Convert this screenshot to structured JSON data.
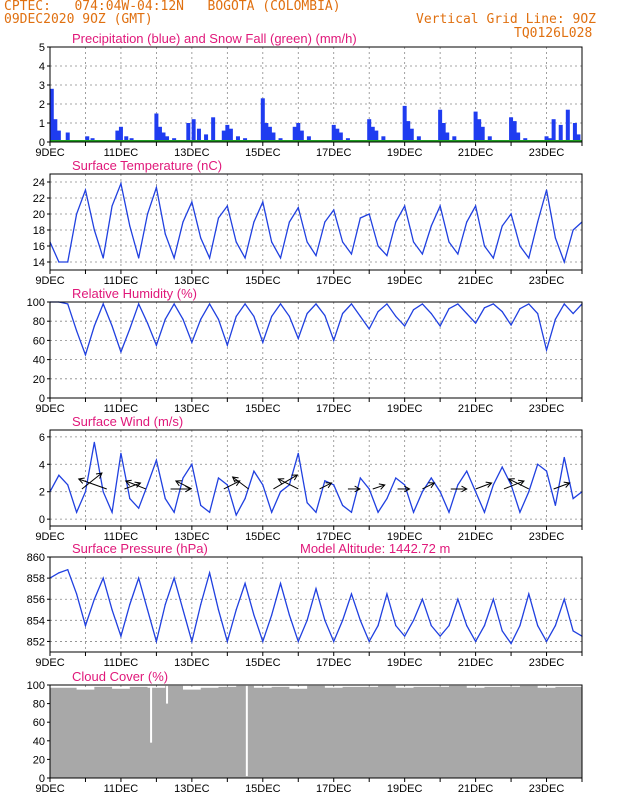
{
  "header": {
    "title": "CPTEC:   074:04W-04:12N   BOGOTA (COLOMBIA)",
    "date": "09DEC2020 9OZ (GMT)",
    "grid_note": "Vertical Grid Line: 9OZ",
    "code": "TQ0126L028"
  },
  "x_tick_labels": [
    "9DEC",
    "11DEC",
    "13DEC",
    "15DEC",
    "17DEC",
    "19DEC",
    "21DEC",
    "23DEC"
  ],
  "chart_data": [
    {
      "type": "bar",
      "title": "Precipitation (blue) and Snow Fall (green) (mm/h)",
      "ylim": [
        0,
        5
      ],
      "yticks": [
        0,
        1,
        2,
        3,
        4,
        5
      ],
      "xlim": [
        0,
        15
      ],
      "colors": {
        "precip": "#1f3cf0",
        "snow": "#20a020"
      },
      "series": [
        {
          "name": "Precipitation",
          "x": [
            0.05,
            0.15,
            0.25,
            0.5,
            1.05,
            1.2,
            1.9,
            2.0,
            2.15,
            2.3,
            3.0,
            3.1,
            3.2,
            3.3,
            3.5,
            3.9,
            4.05,
            4.2,
            4.4,
            4.6,
            4.9,
            5.0,
            5.1,
            5.3,
            5.5,
            6.0,
            6.1,
            6.2,
            6.3,
            6.5,
            6.9,
            7.0,
            7.1,
            7.3,
            8.0,
            8.1,
            8.2,
            8.4,
            9.0,
            9.1,
            9.2,
            9.4,
            10.0,
            10.1,
            10.2,
            10.4,
            11.0,
            11.1,
            11.2,
            11.4,
            12.0,
            12.1,
            12.2,
            12.4,
            13.0,
            13.1,
            13.2,
            13.4,
            14.0,
            14.1,
            14.2,
            14.4,
            14.6,
            14.8,
            14.9
          ],
          "values": [
            2.8,
            1.2,
            0.6,
            0.5,
            0.3,
            0.2,
            0.6,
            0.8,
            0.3,
            0.2,
            1.5,
            0.8,
            0.5,
            0.3,
            0.2,
            1.0,
            1.2,
            0.7,
            0.4,
            1.3,
            0.6,
            0.9,
            0.7,
            0.3,
            0.2,
            2.3,
            1.0,
            0.8,
            0.5,
            0.2,
            0.8,
            1.0,
            0.6,
            0.3,
            0.9,
            0.7,
            0.5,
            0.2,
            1.2,
            0.8,
            0.6,
            0.3,
            1.9,
            1.1,
            0.7,
            0.3,
            1.7,
            1.0,
            0.5,
            0.3,
            1.6,
            1.2,
            0.8,
            0.3,
            1.3,
            1.1,
            0.5,
            0.2,
            0.3,
            0.2,
            1.2,
            0.9,
            1.7,
            1.0,
            0.4
          ]
        },
        {
          "name": "Snow Fall",
          "x": [],
          "values": []
        }
      ]
    },
    {
      "type": "line",
      "title": "Surface Temperature (nC)",
      "ylim": [
        13,
        25
      ],
      "yticks": [
        14,
        16,
        18,
        20,
        22,
        24
      ],
      "xlim": [
        0,
        15
      ],
      "color": "#2040e0",
      "series": [
        {
          "name": "",
          "x": [
            0,
            0.25,
            0.5,
            0.75,
            1.0,
            1.25,
            1.5,
            1.75,
            2.0,
            2.25,
            2.5,
            2.75,
            3.0,
            3.25,
            3.5,
            3.75,
            4.0,
            4.25,
            4.5,
            4.75,
            5.0,
            5.25,
            5.5,
            5.75,
            6.0,
            6.25,
            6.5,
            6.75,
            7.0,
            7.25,
            7.5,
            7.75,
            8.0,
            8.25,
            8.5,
            8.75,
            9.0,
            9.25,
            9.5,
            9.75,
            10.0,
            10.25,
            10.5,
            10.75,
            11.0,
            11.25,
            11.5,
            11.75,
            12.0,
            12.25,
            12.5,
            12.75,
            13.0,
            13.25,
            13.5,
            13.75,
            14.0,
            14.25,
            14.5,
            14.75,
            15.0
          ],
          "values": [
            16.5,
            14.0,
            14.0,
            20.0,
            23.0,
            18.0,
            14.5,
            21.0,
            23.8,
            18.5,
            14.5,
            20.0,
            23.3,
            17.5,
            14.5,
            19.0,
            21.5,
            17.0,
            14.5,
            19.5,
            21.0,
            16.5,
            14.5,
            19.0,
            21.5,
            16.5,
            14.5,
            19.0,
            20.8,
            16.5,
            14.8,
            19.0,
            20.5,
            16.5,
            15.0,
            19.5,
            20.0,
            16.0,
            14.8,
            19.0,
            21.0,
            16.5,
            15.0,
            18.5,
            21.0,
            16.5,
            15.0,
            19.0,
            21.0,
            16.0,
            14.5,
            18.5,
            20.0,
            16.0,
            14.5,
            19.0,
            23.0,
            17.0,
            14.0,
            18.0,
            19.0
          ]
        }
      ]
    },
    {
      "type": "line",
      "title": "Relative Humidity (%)",
      "ylim": [
        0,
        100
      ],
      "yticks": [
        0,
        20,
        40,
        60,
        80,
        100
      ],
      "xlim": [
        0,
        15
      ],
      "color": "#2040e0",
      "series": [
        {
          "name": "",
          "x": [
            0,
            0.25,
            0.5,
            0.75,
            1.0,
            1.25,
            1.5,
            1.75,
            2.0,
            2.25,
            2.5,
            2.75,
            3.0,
            3.25,
            3.5,
            3.75,
            4.0,
            4.25,
            4.5,
            4.75,
            5.0,
            5.25,
            5.5,
            5.75,
            6.0,
            6.25,
            6.5,
            6.75,
            7.0,
            7.25,
            7.5,
            7.75,
            8.0,
            8.25,
            8.5,
            8.75,
            9.0,
            9.25,
            9.5,
            9.75,
            10.0,
            10.25,
            10.5,
            10.75,
            11.0,
            11.25,
            11.5,
            11.75,
            12.0,
            12.25,
            12.5,
            12.75,
            13.0,
            13.25,
            13.5,
            13.75,
            14.0,
            14.25,
            14.5,
            14.75,
            15.0
          ],
          "values": [
            100,
            100,
            98,
            70,
            45,
            75,
            98,
            75,
            48,
            72,
            98,
            78,
            55,
            82,
            98,
            82,
            58,
            82,
            98,
            82,
            55,
            85,
            98,
            85,
            58,
            85,
            98,
            85,
            62,
            88,
            98,
            86,
            60,
            88,
            98,
            85,
            72,
            90,
            98,
            85,
            75,
            92,
            98,
            88,
            75,
            93,
            98,
            88,
            78,
            94,
            98,
            90,
            76,
            93,
            98,
            88,
            50,
            82,
            98,
            88,
            98
          ]
        }
      ]
    },
    {
      "type": "line",
      "title": "Surface Wind (m/s)",
      "ylim": [
        -0.5,
        6.5
      ],
      "yticks": [
        0,
        2,
        4,
        6
      ],
      "xlim": [
        0,
        15
      ],
      "color": "#2040e0",
      "series": [
        {
          "name": "",
          "x": [
            0,
            0.25,
            0.5,
            0.75,
            1.0,
            1.25,
            1.5,
            1.75,
            2.0,
            2.25,
            2.5,
            2.75,
            3.0,
            3.25,
            3.5,
            3.75,
            4.0,
            4.25,
            4.5,
            4.75,
            5.0,
            5.25,
            5.5,
            5.75,
            6.0,
            6.25,
            6.5,
            6.75,
            7.0,
            7.25,
            7.5,
            7.75,
            8.0,
            8.25,
            8.5,
            8.75,
            9.0,
            9.25,
            9.5,
            9.75,
            10.0,
            10.25,
            10.5,
            10.75,
            11.0,
            11.25,
            11.5,
            11.75,
            12.0,
            12.25,
            12.5,
            12.75,
            13.0,
            13.25,
            13.5,
            13.75,
            14.0,
            14.25,
            14.5,
            14.75,
            15.0
          ],
          "values": [
            2.0,
            3.2,
            2.5,
            0.5,
            2.0,
            5.6,
            2.0,
            0.5,
            4.8,
            1.5,
            0.8,
            2.5,
            4.3,
            1.5,
            0.5,
            3.0,
            4.0,
            1.0,
            0.5,
            3.0,
            2.5,
            0.3,
            1.5,
            3.5,
            2.5,
            0.5,
            2.0,
            2.5,
            4.8,
            1.2,
            0.5,
            2.8,
            2.5,
            1.0,
            0.5,
            3.0,
            2.2,
            0.5,
            1.5,
            3.0,
            2.5,
            0.5,
            2.0,
            3.0,
            2.0,
            0.5,
            2.5,
            3.5,
            2.0,
            0.5,
            2.5,
            3.8,
            2.5,
            0.5,
            2.0,
            4.0,
            3.5,
            1.0,
            4.5,
            1.5,
            2.0
          ]
        }
      ],
      "wind_arrows": [
        {
          "x": 0.9,
          "dx": 0.5,
          "dy": 0.8
        },
        {
          "x": 1.6,
          "dx": -0.7,
          "dy": 0.5
        },
        {
          "x": 2.1,
          "dx": 0.4,
          "dy": 0.3
        },
        {
          "x": 2.7,
          "dx": -0.5,
          "dy": 0.4
        },
        {
          "x": 3.4,
          "dx": 0.5,
          "dy": 0.0
        },
        {
          "x": 4.0,
          "dx": -0.4,
          "dy": 0.4
        },
        {
          "x": 4.9,
          "dx": 0.4,
          "dy": 0.4
        },
        {
          "x": 5.6,
          "dx": -0.4,
          "dy": 0.6
        },
        {
          "x": 6.3,
          "dx": 0.6,
          "dy": 0.7
        },
        {
          "x": 7.0,
          "dx": -0.5,
          "dy": 0.5
        },
        {
          "x": 7.6,
          "dx": 0.3,
          "dy": 0.3
        },
        {
          "x": 8.4,
          "dx": 0.3,
          "dy": 0.0
        },
        {
          "x": 9.1,
          "dx": 0.3,
          "dy": 0.2
        },
        {
          "x": 9.8,
          "dx": 0.3,
          "dy": 0.0
        },
        {
          "x": 10.5,
          "dx": 0.3,
          "dy": 0.3
        },
        {
          "x": 11.3,
          "dx": 0.4,
          "dy": 0.0
        },
        {
          "x": 12.0,
          "dx": 0.4,
          "dy": 0.3
        },
        {
          "x": 12.8,
          "dx": 0.5,
          "dy": 0.4
        },
        {
          "x": 13.5,
          "dx": -0.5,
          "dy": 0.5
        },
        {
          "x": 14.2,
          "dx": 0.4,
          "dy": 0.3
        }
      ]
    },
    {
      "type": "line",
      "title": "Surface Pressure (hPa)",
      "annotation": "Model Altitude: 1442.72 m",
      "ylim": [
        851,
        860
      ],
      "yticks": [
        852,
        854,
        856,
        858,
        860
      ],
      "xlim": [
        0,
        15
      ],
      "color": "#2040e0",
      "series": [
        {
          "name": "",
          "x": [
            0,
            0.25,
            0.5,
            0.75,
            1.0,
            1.25,
            1.5,
            1.75,
            2.0,
            2.25,
            2.5,
            2.75,
            3.0,
            3.25,
            3.5,
            3.75,
            4.0,
            4.25,
            4.5,
            4.75,
            5.0,
            5.25,
            5.5,
            5.75,
            6.0,
            6.25,
            6.5,
            6.75,
            7.0,
            7.25,
            7.5,
            7.75,
            8.0,
            8.25,
            8.5,
            8.75,
            9.0,
            9.25,
            9.5,
            9.75,
            10.0,
            10.25,
            10.5,
            10.75,
            11.0,
            11.25,
            11.5,
            11.75,
            12.0,
            12.25,
            12.5,
            12.75,
            13.0,
            13.25,
            13.5,
            13.75,
            14.0,
            14.25,
            14.5,
            14.75,
            15.0
          ],
          "values": [
            858.0,
            858.5,
            858.8,
            856.5,
            853.5,
            856.0,
            858.0,
            855.0,
            852.5,
            855.5,
            858.0,
            855.0,
            852.0,
            855.5,
            858.0,
            855.0,
            852.0,
            855.5,
            858.5,
            855.0,
            852.0,
            855.0,
            857.5,
            854.5,
            852.0,
            854.5,
            857.5,
            854.5,
            852.0,
            854.0,
            857.0,
            854.0,
            852.0,
            854.0,
            856.5,
            854.0,
            852.0,
            853.5,
            856.5,
            853.5,
            852.5,
            854.0,
            856.0,
            853.5,
            852.5,
            853.5,
            856.0,
            853.5,
            852.0,
            853.5,
            856.0,
            853.0,
            851.8,
            853.5,
            856.5,
            853.5,
            852.0,
            853.5,
            856.0,
            853.0,
            852.5
          ]
        }
      ]
    },
    {
      "type": "bar",
      "title": "Cloud Cover (%)",
      "ylim": [
        0,
        100
      ],
      "yticks": [
        0,
        20,
        40,
        60,
        80,
        100
      ],
      "xlim": [
        0,
        15
      ],
      "color": "#a8a8a8",
      "series": [
        {
          "name": "",
          "x": [
            0.5,
            1.0,
            1.5,
            2.0,
            2.5,
            3.0,
            3.5,
            4.0,
            4.5,
            5.0,
            5.5,
            6.0,
            6.5,
            7.0,
            7.5,
            8.0,
            8.5,
            9.0,
            9.5,
            10.0,
            10.5,
            11.0,
            11.5,
            12.0,
            12.5,
            13.0,
            13.5,
            14.0,
            14.5
          ],
          "values": [
            97,
            95,
            98,
            96,
            98,
            97,
            99,
            95,
            97,
            98,
            99,
            97,
            98,
            96,
            99,
            97,
            98,
            98,
            99,
            97,
            98,
            98,
            99,
            97,
            98,
            98,
            99,
            97,
            98
          ]
        }
      ],
      "dips": [
        {
          "x": 2.85,
          "value": 38
        },
        {
          "x": 5.55,
          "value": 2
        },
        {
          "x": 3.3,
          "value": 80
        }
      ]
    }
  ]
}
